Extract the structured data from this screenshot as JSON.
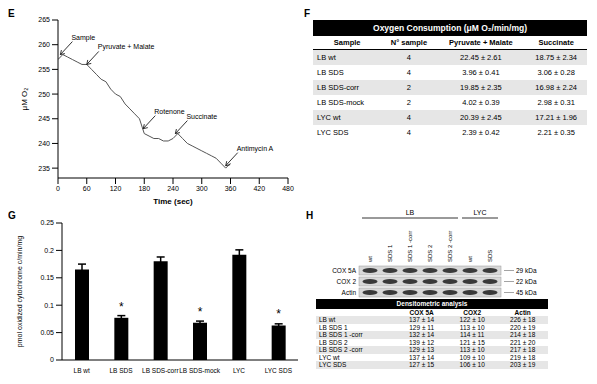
{
  "panel_labels": [
    "E",
    "F",
    "G",
    "H"
  ],
  "chart_data": [
    {
      "type": "line",
      "x_label": "Time (sec)",
      "y_label": "μM O₂",
      "x": [
        0,
        10,
        20,
        30,
        40,
        50,
        60,
        70,
        80,
        90,
        100,
        110,
        120,
        130,
        140,
        150,
        160,
        170,
        180,
        190,
        200,
        210,
        220,
        230,
        240,
        250,
        260,
        270,
        280,
        290,
        300,
        310,
        320,
        330,
        340,
        350,
        360
      ],
      "values": [
        257,
        258,
        257.5,
        257,
        256.5,
        256,
        256,
        255,
        254,
        253,
        252.5,
        251,
        250,
        249.5,
        248,
        247,
        246,
        245,
        242,
        241.5,
        241,
        241,
        240.5,
        240.5,
        241,
        242,
        241,
        240,
        239.5,
        239,
        238.5,
        238,
        237.5,
        237,
        236,
        235,
        236
      ],
      "color": "#555555",
      "xlim": [
        0,
        480
      ],
      "xticks": [
        0,
        60,
        120,
        180,
        240,
        300,
        360,
        420,
        480
      ],
      "ylim": [
        233,
        265
      ],
      "yticks": [
        235,
        240,
        245,
        250,
        255,
        260,
        265
      ],
      "annotations": [
        {
          "text": "Sample",
          "x": 5,
          "y": 258
        },
        {
          "text": "Pyruvate + Malate",
          "x": 60,
          "y": 256
        },
        {
          "text": "Rotenone",
          "x": 178,
          "y": 243
        },
        {
          "text": "Succinate",
          "x": 245,
          "y": 242
        },
        {
          "text": "Antimycin A",
          "x": 350,
          "y": 235.5
        }
      ]
    },
    {
      "type": "bar",
      "y_label": "pmol oxidized cytochrome c/min/mg",
      "categories": [
        "LB wt",
        "LB SDS",
        "LB SDS-corr",
        "LB SDS-mock",
        "LYC",
        "LYC SDS"
      ],
      "values": [
        0.165,
        0.077,
        0.18,
        0.068,
        0.192,
        0.063
      ],
      "errors": [
        0.01,
        0.004,
        0.008,
        0.003,
        0.009,
        0.003
      ],
      "color": "#000000",
      "ylim": [
        0,
        0.25
      ],
      "yticks": [
        0,
        0.05,
        0.1,
        0.15,
        0.2,
        0.25
      ],
      "annotations": [
        {
          "category": "LB SDS",
          "text": "*"
        },
        {
          "category": "LB SDS-mock",
          "text": "*"
        },
        {
          "category": "LYC SDS",
          "text": "*"
        }
      ]
    }
  ],
  "table_F": {
    "title": "Oxygen Consumption (μM O₂/min/mg)",
    "columns": [
      "Sample",
      "N° sample",
      "Pyruvate + Malate",
      "Succinate"
    ],
    "rows": [
      [
        "LB wt",
        "4",
        "22.45 ± 2.61",
        "18.75 ± 2.34"
      ],
      [
        "LB SDS",
        "4",
        "3.96 ± 0.41",
        "3.06 ± 0.28"
      ],
      [
        "LB SDS-corr",
        "2",
        "19.85 ± 2.35",
        "16.98 ± 2.24"
      ],
      [
        "LB SDS-mock",
        "2",
        "4.02 ± 0.39",
        "2.98 ± 0.31"
      ],
      [
        "LYC wt",
        "4",
        "20.39 ± 2.45",
        "17.21 ± 1.96"
      ],
      [
        "LYC SDS",
        "4",
        "2.39 ± 0.42",
        "2.21 ± 0.35"
      ]
    ]
  },
  "blot_H": {
    "groups": [
      {
        "label": "LB",
        "lanes": [
          "wt",
          "SDS 1",
          "SDS 1 -corr",
          "SDS 2",
          "SDS 2 -corr"
        ]
      },
      {
        "label": "LYC",
        "lanes": [
          "wt",
          "SDS"
        ]
      }
    ],
    "bands": [
      {
        "name": "COX 5A",
        "size": "29 kDa"
      },
      {
        "name": "COX 2",
        "size": "22 kDa"
      },
      {
        "name": "Actin",
        "size": "45 kDa"
      }
    ],
    "table": {
      "title": "Densitometric analysis",
      "columns": [
        "COX 5A",
        "COX2",
        "Actin"
      ],
      "rows": [
        {
          "label": "LB wt",
          "cells": [
            "137 ± 14",
            "122 ± 10",
            "226 ± 18"
          ]
        },
        {
          "label": "LB SDS 1",
          "cells": [
            "129 ± 11",
            "113 ± 10",
            "220 ± 19"
          ]
        },
        {
          "label": "LB SDS 1 -corr",
          "cells": [
            "132 ± 14",
            "114 ± 11",
            "214 ± 18"
          ]
        },
        {
          "label": "LB SDS 2",
          "cells": [
            "139 ± 12",
            "121 ± 15",
            "221 ± 20"
          ]
        },
        {
          "label": "LB SDS 2 -corr",
          "cells": [
            "129 ± 13",
            "113 ± 10",
            "217 ± 18"
          ]
        },
        {
          "label": "LYC wt",
          "cells": [
            "137 ± 14",
            "109 ± 10",
            "219 ± 18"
          ]
        },
        {
          "label": "LYC SDS",
          "cells": [
            "127 ± 15",
            "106 ± 10",
            "203 ± 19"
          ]
        }
      ]
    }
  }
}
